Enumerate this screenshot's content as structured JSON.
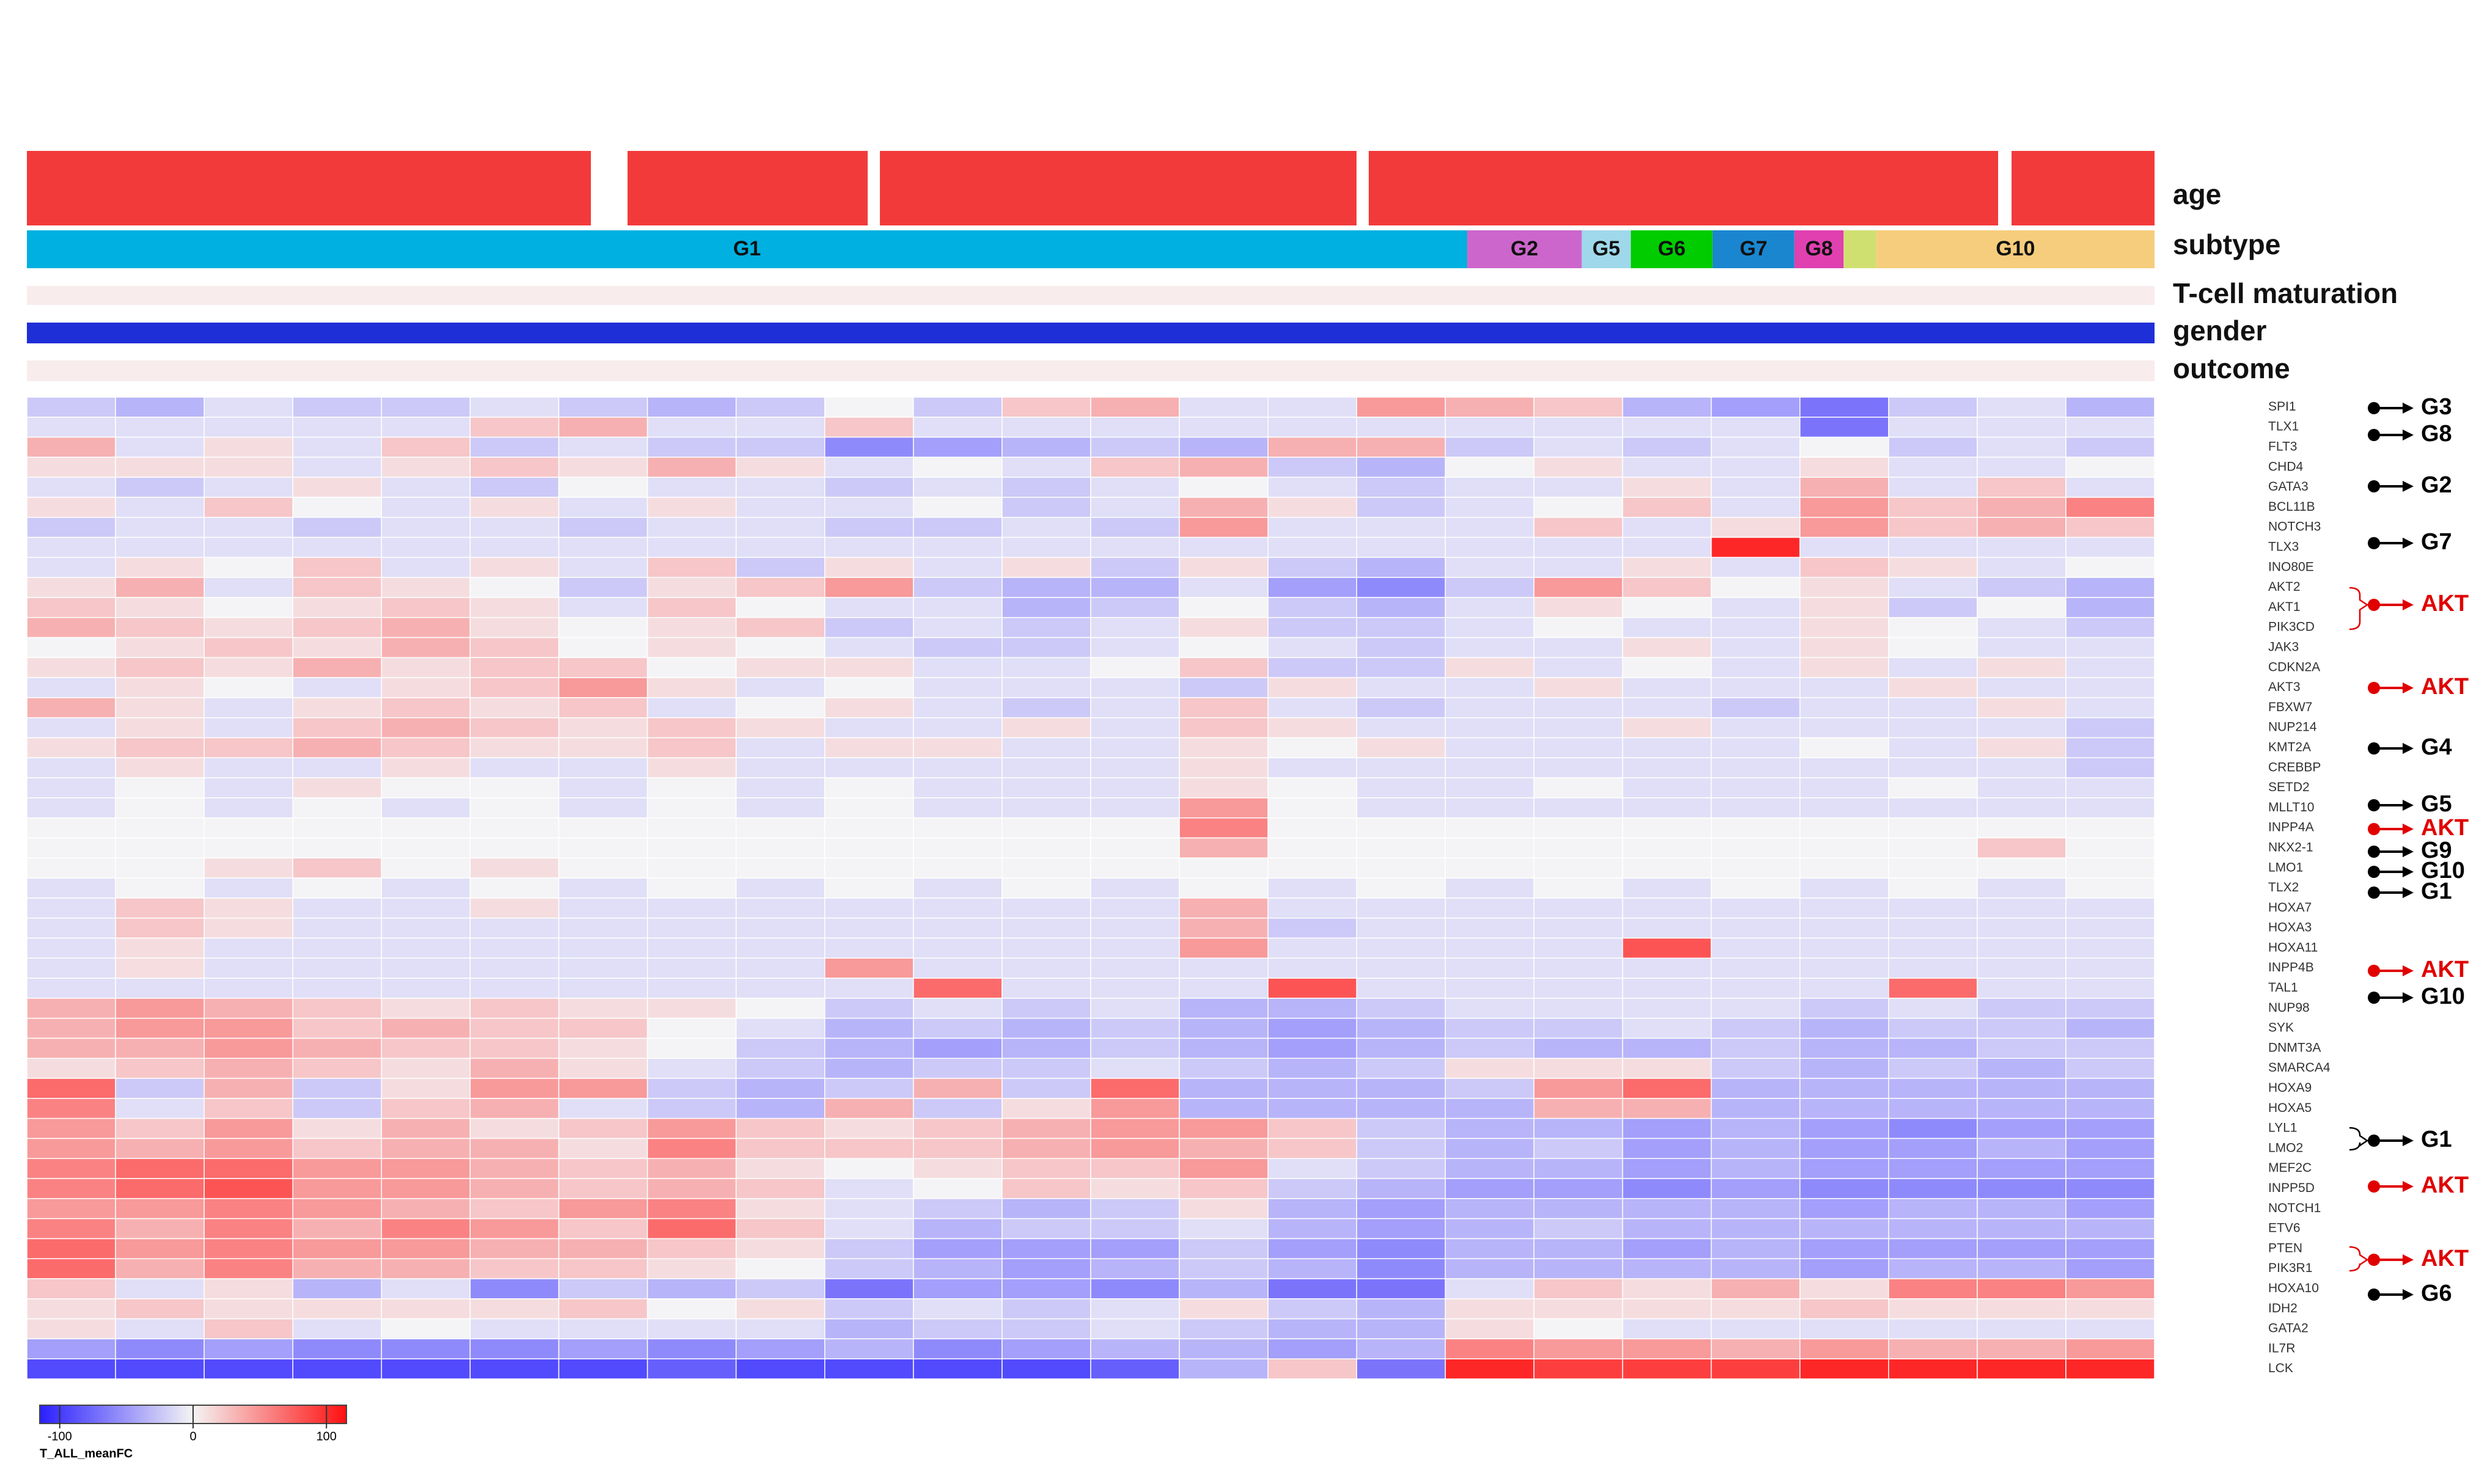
{
  "chart_data": {
    "type": "heatmap",
    "rows": [
      "SPI1",
      "TLX1",
      "FLT3",
      "CHD4",
      "GATA3",
      "BCL11B",
      "NOTCH3",
      "TLX3",
      "INO80E",
      "AKT2",
      "AKT1",
      "PIK3CD",
      "JAK3",
      "CDKN2A",
      "AKT3",
      "FBXW7",
      "NUP214",
      "KMT2A",
      "CREBBP",
      "SETD2",
      "MLLT10",
      "INPP4A",
      "NKX2-1",
      "LMO1",
      "TLX2",
      "HOXA7",
      "HOXA3",
      "HOXA11",
      "INPP4B",
      "TAL1",
      "NUP98",
      "SYK",
      "DNMT3A",
      "SMARCA4",
      "HOXA9",
      "HOXA5",
      "LYL1",
      "LMO2",
      "MEF2C",
      "INPP5D",
      "NOTCH1",
      "ETV6",
      "PTEN",
      "PIK3R1",
      "HOXA10",
      "IDH2",
      "GATA2",
      "IL7R",
      "LCK"
    ],
    "values": [
      [
        -20,
        -30,
        -10,
        -20,
        -20,
        -10,
        -20,
        -30,
        -20,
        0,
        -20,
        20,
        30,
        -10,
        -10,
        40,
        30,
        20,
        -30,
        -40,
        -60,
        -20,
        -10,
        -30
      ],
      [
        -10,
        -10,
        -10,
        -10,
        -10,
        20,
        30,
        -10,
        -10,
        20,
        -10,
        -10,
        -10,
        -10,
        -10,
        -10,
        -10,
        -10,
        -10,
        -10,
        -60,
        -10,
        -10,
        -10
      ],
      [
        30,
        -10,
        10,
        -10,
        20,
        -20,
        -10,
        -20,
        -20,
        -50,
        -40,
        -30,
        -20,
        -30,
        30,
        30,
        -20,
        -10,
        -20,
        -10,
        0,
        -20,
        -10,
        -20
      ],
      [
        10,
        10,
        10,
        -10,
        10,
        20,
        10,
        30,
        10,
        -10,
        0,
        -10,
        20,
        30,
        -20,
        -30,
        0,
        10,
        -10,
        -10,
        10,
        -10,
        -10,
        0
      ],
      [
        -10,
        -20,
        -10,
        10,
        -10,
        -20,
        0,
        -10,
        -10,
        -20,
        -10,
        -20,
        -10,
        0,
        -10,
        -20,
        -10,
        -10,
        10,
        -10,
        30,
        -10,
        20,
        -10
      ],
      [
        10,
        -10,
        20,
        0,
        -10,
        10,
        -10,
        10,
        -10,
        -10,
        0,
        -20,
        -10,
        30,
        10,
        -20,
        -10,
        0,
        20,
        -10,
        40,
        20,
        30,
        50
      ],
      [
        -20,
        -10,
        -10,
        -20,
        -10,
        -10,
        -20,
        -10,
        -10,
        -20,
        -20,
        -10,
        -20,
        40,
        -10,
        -10,
        -10,
        20,
        -10,
        10,
        40,
        20,
        30,
        20
      ],
      [
        -10,
        -10,
        -10,
        -10,
        -10,
        -10,
        -10,
        -10,
        -10,
        -10,
        -10,
        -10,
        -10,
        -10,
        -10,
        -10,
        -10,
        -10,
        -10,
        90,
        -10,
        -10,
        -10,
        -10
      ],
      [
        -10,
        10,
        0,
        20,
        -10,
        10,
        -10,
        20,
        -20,
        10,
        -10,
        10,
        -20,
        10,
        -20,
        -30,
        -10,
        -10,
        10,
        -10,
        20,
        10,
        -10,
        0
      ],
      [
        10,
        30,
        -10,
        20,
        10,
        0,
        -20,
        10,
        20,
        40,
        -20,
        -30,
        -30,
        -10,
        -40,
        -50,
        -20,
        40,
        20,
        0,
        10,
        -10,
        -20,
        -30
      ],
      [
        20,
        10,
        0,
        10,
        20,
        10,
        -10,
        20,
        0,
        -10,
        -10,
        -30,
        -20,
        0,
        -20,
        -30,
        -10,
        10,
        0,
        -10,
        10,
        -20,
        0,
        -30
      ],
      [
        30,
        20,
        10,
        20,
        30,
        10,
        0,
        10,
        20,
        -20,
        -10,
        -20,
        -10,
        10,
        -20,
        -20,
        -10,
        0,
        -10,
        -10,
        10,
        0,
        -10,
        -20
      ],
      [
        0,
        10,
        20,
        10,
        30,
        20,
        0,
        10,
        0,
        -10,
        -20,
        -20,
        -10,
        0,
        -10,
        -20,
        -10,
        -10,
        10,
        -10,
        10,
        0,
        -10,
        -10
      ],
      [
        10,
        20,
        10,
        30,
        10,
        20,
        20,
        0,
        10,
        10,
        -10,
        -10,
        0,
        20,
        -20,
        -20,
        10,
        -10,
        0,
        -10,
        10,
        -10,
        10,
        -10
      ],
      [
        -10,
        10,
        0,
        -10,
        10,
        20,
        40,
        10,
        -10,
        0,
        -10,
        -10,
        -10,
        -20,
        10,
        -10,
        -10,
        10,
        -10,
        -10,
        -10,
        10,
        -10,
        -10
      ],
      [
        30,
        10,
        -10,
        10,
        20,
        10,
        20,
        -10,
        0,
        10,
        -10,
        -20,
        -10,
        20,
        -10,
        -20,
        -10,
        -10,
        -10,
        -20,
        -10,
        -10,
        10,
        -10
      ],
      [
        -10,
        10,
        -10,
        20,
        30,
        20,
        10,
        20,
        10,
        -10,
        -10,
        10,
        -10,
        20,
        10,
        -10,
        -10,
        -10,
        10,
        -10,
        -10,
        -10,
        -10,
        -20
      ],
      [
        10,
        20,
        20,
        30,
        20,
        10,
        10,
        20,
        -10,
        10,
        10,
        -10,
        -10,
        10,
        0,
        10,
        -10,
        -10,
        -10,
        -10,
        0,
        -10,
        10,
        -20
      ],
      [
        -10,
        10,
        -10,
        -10,
        10,
        -10,
        -10,
        10,
        -10,
        -10,
        -10,
        -10,
        -10,
        10,
        -10,
        -10,
        -10,
        -10,
        -10,
        -10,
        -10,
        -10,
        -10,
        -20
      ],
      [
        -10,
        0,
        -10,
        10,
        0,
        0,
        -10,
        0,
        -10,
        0,
        -10,
        -10,
        -10,
        10,
        0,
        -10,
        -10,
        0,
        -10,
        -10,
        -10,
        0,
        -10,
        -10
      ],
      [
        -10,
        0,
        -10,
        0,
        -10,
        0,
        -10,
        0,
        -10,
        0,
        -10,
        -10,
        -10,
        40,
        0,
        -10,
        -10,
        -10,
        -10,
        -10,
        -10,
        -10,
        -10,
        -10
      ],
      [
        0,
        0,
        0,
        0,
        0,
        0,
        0,
        0,
        0,
        0,
        0,
        0,
        0,
        50,
        0,
        0,
        0,
        0,
        0,
        0,
        0,
        0,
        0,
        0
      ],
      [
        0,
        0,
        0,
        0,
        0,
        0,
        0,
        0,
        0,
        0,
        0,
        0,
        0,
        30,
        0,
        0,
        0,
        0,
        0,
        0,
        0,
        0,
        20,
        0
      ],
      [
        0,
        0,
        10,
        20,
        0,
        10,
        0,
        0,
        0,
        0,
        0,
        0,
        0,
        0,
        0,
        0,
        0,
        0,
        0,
        0,
        0,
        0,
        0,
        0
      ],
      [
        -10,
        0,
        -10,
        0,
        -10,
        0,
        -10,
        0,
        -10,
        0,
        -10,
        0,
        -10,
        0,
        -10,
        0,
        -10,
        0,
        -10,
        0,
        -10,
        0,
        -10,
        0
      ],
      [
        -10,
        20,
        10,
        -10,
        -10,
        10,
        -10,
        -10,
        -10,
        -10,
        -10,
        -10,
        -10,
        30,
        -10,
        -10,
        -10,
        -10,
        -10,
        -10,
        -10,
        -10,
        -10,
        -10
      ],
      [
        -10,
        20,
        10,
        -10,
        -10,
        -10,
        -10,
        -10,
        -10,
        -10,
        -10,
        -10,
        -10,
        30,
        -20,
        -10,
        -10,
        -10,
        -10,
        -10,
        -10,
        -10,
        -10,
        -10
      ],
      [
        -10,
        10,
        -10,
        -10,
        -10,
        -10,
        -10,
        -10,
        -10,
        -10,
        -10,
        -10,
        -10,
        40,
        -10,
        -10,
        -10,
        -10,
        70,
        -10,
        -10,
        -10,
        -10,
        -10
      ],
      [
        -10,
        10,
        -10,
        -10,
        -10,
        -10,
        -10,
        -10,
        -10,
        40,
        -10,
        -10,
        -10,
        -10,
        -10,
        -10,
        -10,
        -10,
        -10,
        -10,
        -10,
        -10,
        -10,
        -10
      ],
      [
        -10,
        -10,
        -10,
        -10,
        -10,
        -10,
        -10,
        -10,
        -10,
        -10,
        60,
        -10,
        -10,
        -10,
        70,
        -10,
        -10,
        -10,
        -10,
        -10,
        -10,
        60,
        -10,
        -10
      ],
      [
        30,
        40,
        30,
        20,
        10,
        20,
        10,
        10,
        0,
        -20,
        -10,
        -20,
        -10,
        -30,
        -30,
        -20,
        -10,
        -10,
        -10,
        -10,
        -20,
        -10,
        -20,
        -20
      ],
      [
        30,
        40,
        40,
        20,
        30,
        20,
        20,
        0,
        -10,
        -30,
        -20,
        -30,
        -20,
        -30,
        -40,
        -30,
        -20,
        -20,
        -10,
        -20,
        -30,
        -20,
        -20,
        -30
      ],
      [
        30,
        30,
        40,
        30,
        20,
        20,
        10,
        0,
        -20,
        -30,
        -40,
        -30,
        -20,
        -30,
        -40,
        -30,
        -20,
        -30,
        -30,
        -20,
        -30,
        -30,
        -20,
        -20
      ],
      [
        10,
        20,
        30,
        20,
        10,
        30,
        10,
        -10,
        -20,
        -30,
        -20,
        -20,
        -10,
        -20,
        -30,
        -20,
        10,
        10,
        10,
        -20,
        -30,
        -20,
        -30,
        -20
      ],
      [
        60,
        -20,
        30,
        -20,
        10,
        40,
        40,
        -20,
        -30,
        -20,
        30,
        -20,
        60,
        -30,
        -30,
        -30,
        -20,
        40,
        60,
        -30,
        -30,
        -30,
        -30,
        -30
      ],
      [
        50,
        -10,
        20,
        -20,
        20,
        30,
        -10,
        -20,
        -30,
        30,
        -20,
        10,
        40,
        -30,
        -30,
        -30,
        -30,
        30,
        30,
        -30,
        -30,
        -30,
        -30,
        -30
      ],
      [
        40,
        20,
        40,
        10,
        30,
        10,
        20,
        40,
        20,
        10,
        20,
        30,
        40,
        40,
        20,
        -20,
        -30,
        -30,
        -40,
        -30,
        -40,
        -50,
        -40,
        -40
      ],
      [
        40,
        30,
        40,
        20,
        30,
        30,
        10,
        50,
        20,
        20,
        20,
        30,
        40,
        30,
        20,
        -20,
        -30,
        -20,
        -40,
        -30,
        -40,
        -40,
        -30,
        -40
      ],
      [
        50,
        60,
        60,
        40,
        40,
        30,
        20,
        30,
        10,
        0,
        10,
        20,
        20,
        40,
        -10,
        -20,
        -30,
        -30,
        -40,
        -30,
        -40,
        -40,
        -40,
        -40
      ],
      [
        50,
        60,
        70,
        40,
        40,
        30,
        20,
        30,
        20,
        -10,
        0,
        20,
        10,
        20,
        -20,
        -30,
        -40,
        -40,
        -50,
        -40,
        -50,
        -50,
        -50,
        -50
      ],
      [
        40,
        40,
        50,
        40,
        30,
        20,
        40,
        50,
        10,
        -10,
        -20,
        -30,
        -20,
        10,
        -30,
        -40,
        -30,
        -30,
        -30,
        -30,
        -40,
        -30,
        -30,
        -40
      ],
      [
        50,
        30,
        50,
        30,
        50,
        40,
        20,
        60,
        20,
        -10,
        -30,
        -20,
        -20,
        -10,
        -30,
        -40,
        -30,
        -20,
        -30,
        -30,
        -30,
        -30,
        -30,
        -30
      ],
      [
        60,
        40,
        50,
        40,
        40,
        30,
        30,
        20,
        10,
        -20,
        -40,
        -40,
        -40,
        -20,
        -40,
        -50,
        -30,
        -30,
        -40,
        -30,
        -40,
        -40,
        -40,
        -40
      ],
      [
        60,
        30,
        50,
        30,
        30,
        20,
        20,
        10,
        0,
        -20,
        -30,
        -40,
        -30,
        -20,
        -30,
        -50,
        -30,
        -30,
        -30,
        -30,
        -40,
        -30,
        -30,
        -40
      ],
      [
        20,
        -10,
        10,
        -30,
        -10,
        -50,
        -20,
        -30,
        -20,
        -60,
        -40,
        -40,
        -50,
        -30,
        -60,
        -60,
        -10,
        20,
        10,
        30,
        10,
        50,
        50,
        40
      ],
      [
        10,
        20,
        10,
        10,
        10,
        10,
        20,
        0,
        10,
        -20,
        -10,
        -20,
        -10,
        10,
        -20,
        -30,
        10,
        10,
        10,
        10,
        20,
        10,
        10,
        10
      ],
      [
        10,
        -10,
        20,
        -10,
        0,
        -10,
        -10,
        -10,
        -10,
        -30,
        -20,
        -20,
        -10,
        -20,
        -30,
        -30,
        10,
        0,
        -10,
        -10,
        -10,
        -10,
        -10,
        -10
      ],
      [
        -40,
        -50,
        -40,
        -50,
        -50,
        -50,
        -40,
        -50,
        -40,
        -30,
        -50,
        -40,
        -30,
        -30,
        -40,
        -30,
        50,
        40,
        40,
        30,
        40,
        30,
        30,
        40
      ],
      [
        -80,
        -80,
        -80,
        -80,
        -80,
        -80,
        -80,
        -70,
        -80,
        -80,
        -80,
        -80,
        -70,
        -30,
        20,
        -60,
        90,
        80,
        80,
        80,
        90,
        90,
        90,
        90
      ]
    ],
    "tracks": [
      "age",
      "subtype",
      "T-cell maturation",
      "gender",
      "outcome"
    ],
    "subtypes": [
      {
        "name": "G1",
        "size": 88,
        "color": "#00b0e0"
      },
      {
        "name": "G2",
        "size": 7,
        "color": "#cc66cc"
      },
      {
        "name": "G5",
        "size": 3,
        "color": "#9fd8ea"
      },
      {
        "name": "G6",
        "size": 5,
        "color": "#00cc00"
      },
      {
        "name": "G7",
        "size": 5,
        "color": "#1a86d0"
      },
      {
        "name": "G8",
        "size": 3,
        "color": "#e040b0"
      },
      {
        "name": null,
        "size": 2,
        "color": "#cfe070"
      },
      {
        "name": "G10",
        "size": 17,
        "color": "#f6cd7c"
      }
    ],
    "annotations": [
      {
        "label": "G3",
        "color": "#000000"
      },
      {
        "label": "G8",
        "color": "#000000"
      },
      {
        "label": "G2",
        "color": "#000000"
      },
      {
        "label": "G7",
        "color": "#000000"
      },
      {
        "label": "AKT",
        "color": "#e00000"
      },
      {
        "label": "AKT",
        "color": "#e00000"
      },
      {
        "label": "G4",
        "color": "#000000"
      },
      {
        "label": "G5",
        "color": "#000000"
      },
      {
        "label": "AKT",
        "color": "#e00000"
      },
      {
        "label": "G9",
        "color": "#000000"
      },
      {
        "label": "G10",
        "color": "#000000"
      },
      {
        "label": "G1",
        "color": "#000000"
      },
      {
        "label": "AKT",
        "color": "#e00000"
      },
      {
        "label": "G10",
        "color": "#000000"
      },
      {
        "label": "G1",
        "color": "#000000"
      },
      {
        "label": "AKT",
        "color": "#e00000"
      },
      {
        "label": "AKT",
        "color": "#e00000"
      },
      {
        "label": "G6",
        "color": "#000000"
      }
    ],
    "colorbar": {
      "label": "T_ALL_meanFC",
      "clim": [
        -115,
        115
      ],
      "ticks": [
        -100,
        0,
        100
      ]
    }
  }
}
